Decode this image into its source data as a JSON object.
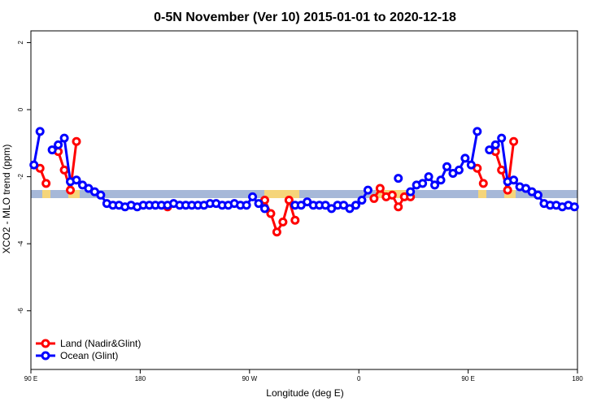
{
  "chart_data": {
    "type": "line",
    "title": "0-5N November (Ver 10)   2015-01-01 to 2020-12-18",
    "x_label": "Longitude (deg E)",
    "y_label": "XCO2 - MLO trend (ppm)",
    "x": [
      92.5,
      97.5,
      102.5,
      107.5,
      112.5,
      117.5,
      122.5,
      127.5,
      132.5,
      137.5,
      142.5,
      147.5,
      152.5,
      157.5,
      162.5,
      167.5,
      172.5,
      177.5,
      182.5,
      187.5,
      192.5,
      197.5,
      202.5,
      207.5,
      212.5,
      217.5,
      222.5,
      227.5,
      232.5,
      237.5,
      242.5,
      247.5,
      252.5,
      257.5,
      262.5,
      267.5,
      272.5,
      277.5,
      282.5,
      287.5,
      292.5,
      297.5,
      302.5,
      307.5,
      312.5,
      317.5,
      322.5,
      327.5,
      332.5,
      337.5,
      342.5,
      347.5,
      352.5,
      357.5,
      362.5,
      367.5,
      372.5,
      377.5,
      382.5,
      387.5,
      392.5,
      397.5,
      402.5,
      407.5,
      412.5,
      417.5,
      422.5,
      427.5,
      432.5,
      437.5,
      442.5,
      447.5,
      452.5,
      457.5,
      462.5,
      467.5,
      472.5,
      477.5,
      482.5,
      487.5,
      492.5,
      497.5,
      502.5,
      507.5,
      512.5,
      517.5,
      522.5,
      527.5,
      532.5,
      537.5
    ],
    "series": [
      {
        "name": "Land (Nadir&Glint)",
        "color": "#ff0000",
        "values": [
          null,
          -1.75,
          -2.2,
          null,
          -1.25,
          -1.8,
          -2.4,
          -0.95,
          null,
          null,
          null,
          null,
          null,
          null,
          null,
          null,
          null,
          null,
          null,
          null,
          null,
          null,
          -2.9,
          null,
          null,
          null,
          null,
          null,
          null,
          null,
          null,
          null,
          null,
          null,
          null,
          null,
          null,
          null,
          -2.7,
          -3.1,
          -3.65,
          -3.35,
          -2.7,
          -3.3,
          null,
          null,
          null,
          null,
          null,
          null,
          null,
          null,
          null,
          null,
          null,
          null,
          -2.65,
          -2.35,
          -2.6,
          -2.55,
          -2.9,
          -2.6,
          -2.6,
          null,
          null,
          null,
          null,
          null,
          null,
          null,
          null,
          null,
          null,
          -1.75,
          -2.2,
          null,
          -1.25,
          -1.8,
          -2.4,
          -0.95,
          null,
          null,
          null,
          null,
          null,
          null,
          null,
          null,
          null,
          null
        ]
      },
      {
        "name": "Ocean (Glint)",
        "color": "#0000ff",
        "values": [
          -1.65,
          -0.65,
          null,
          -1.2,
          -1.05,
          -0.85,
          -2.15,
          -2.1,
          -2.25,
          -2.35,
          -2.45,
          -2.55,
          -2.8,
          -2.85,
          -2.85,
          -2.9,
          -2.85,
          -2.9,
          -2.85,
          -2.85,
          -2.85,
          -2.85,
          -2.85,
          -2.8,
          -2.85,
          -2.85,
          -2.85,
          -2.85,
          -2.85,
          -2.8,
          -2.8,
          -2.85,
          -2.85,
          -2.8,
          -2.85,
          -2.85,
          -2.6,
          -2.8,
          -2.95,
          null,
          null,
          null,
          null,
          -2.85,
          -2.85,
          -2.75,
          -2.85,
          -2.85,
          -2.85,
          -2.95,
          -2.85,
          -2.85,
          -2.95,
          -2.85,
          -2.7,
          -2.4,
          null,
          null,
          null,
          null,
          -2.05,
          null,
          -2.45,
          -2.25,
          -2.2,
          -2.0,
          -2.25,
          -2.1,
          -1.7,
          -1.9,
          -1.8,
          -1.45,
          -1.65,
          -0.65,
          null,
          -1.2,
          -1.05,
          -0.85,
          -2.15,
          -2.1,
          -2.3,
          -2.35,
          -2.45,
          -2.55,
          -2.8,
          -2.85,
          -2.85,
          -2.9,
          -2.85,
          -2.9
        ]
      }
    ],
    "xlim": [
      90,
      540
    ],
    "xticks": [
      {
        "value": 90,
        "label": "90 E"
      },
      {
        "value": 180,
        "label": "180"
      },
      {
        "value": 270,
        "label": "90 W"
      },
      {
        "value": 360,
        "label": "0"
      },
      {
        "value": 450,
        "label": "90 E"
      },
      {
        "value": 540,
        "label": "180"
      }
    ],
    "ylim": [
      -7.75,
      2.35
    ],
    "yticks": [
      -6,
      -4,
      -2,
      0,
      2
    ],
    "legend": "bottom-left"
  }
}
